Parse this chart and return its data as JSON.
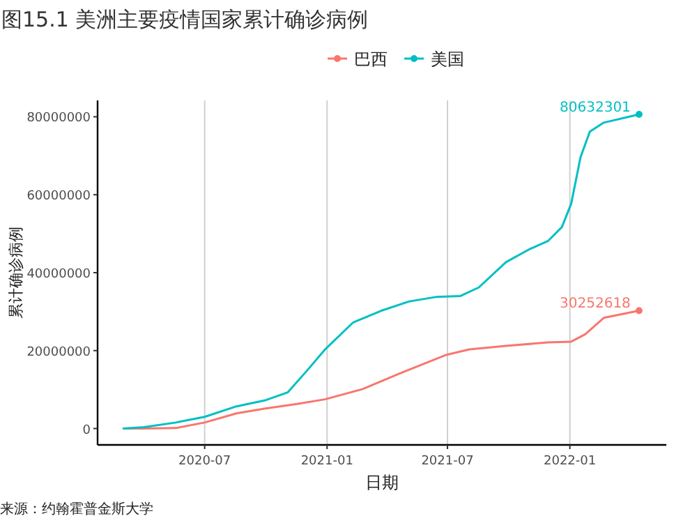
{
  "chart_data": {
    "type": "line",
    "title": "图15.1 美洲主要疫情国家累计确诊病例",
    "xlabel": "日期",
    "ylabel": "累计确诊病例",
    "annotations": [
      "来源：约翰霍普金斯大学"
    ],
    "xlim": [
      "2020-01-22",
      "2022-05-26"
    ],
    "xticks": [
      {
        "value": "2020-07-01",
        "label": "2020-07"
      },
      {
        "value": "2021-01-01",
        "label": "2021-01"
      },
      {
        "value": "2021-07-01",
        "label": "2021-07"
      },
      {
        "value": "2022-01-01",
        "label": "2022-01"
      }
    ],
    "ylim": [
      -4200000,
      84200000
    ],
    "yticks": [
      0,
      20000000,
      40000000,
      60000000,
      80000000
    ],
    "grid": "x",
    "legend": "top",
    "series": [
      {
        "name": "巴西",
        "color": "#f8766d",
        "x": [
          "2020-03-01",
          "2020-04-01",
          "2020-05-19",
          "2020-07-01",
          "2020-08-18",
          "2020-09-29",
          "2020-11-17",
          "2020-12-29",
          "2021-02-23",
          "2021-04-20",
          "2021-06-29",
          "2021-08-03",
          "2021-09-27",
          "2021-11-29",
          "2022-01-03",
          "2022-01-24",
          "2022-02-21",
          "2022-04-15"
        ],
        "values": [
          0,
          0,
          120000,
          1550000,
          3900000,
          5100000,
          6300000,
          7500000,
          10100000,
          14100000,
          18900000,
          20300000,
          21200000,
          22100000,
          22300000,
          24200000,
          28400000,
          30252618
        ],
        "value_labels": [
          null,
          null,
          null,
          null,
          null,
          null,
          null,
          null,
          null,
          null,
          null,
          null,
          null,
          null,
          null,
          null,
          null,
          "30252618"
        ]
      },
      {
        "name": "美国",
        "color": "#00bfc4",
        "x": [
          "2020-03-01",
          "2020-04-01",
          "2020-05-19",
          "2020-07-01",
          "2020-08-18",
          "2020-09-29",
          "2020-11-03",
          "2020-12-01",
          "2020-12-29",
          "2021-02-09",
          "2021-03-23",
          "2021-05-04",
          "2021-06-15",
          "2021-07-20",
          "2021-08-17",
          "2021-09-27",
          "2021-11-01",
          "2021-11-29",
          "2021-12-20",
          "2022-01-03",
          "2022-01-17",
          "2022-01-31",
          "2022-02-21",
          "2022-04-15"
        ],
        "values": [
          0,
          360000,
          1550000,
          3000000,
          5700000,
          7200000,
          9300000,
          14700000,
          20300000,
          27200000,
          30200000,
          32600000,
          33800000,
          34000000,
          36200000,
          42700000,
          46000000,
          48100000,
          51700000,
          57700000,
          69600000,
          76200000,
          78500000,
          80632301
        ],
        "value_labels": [
          null,
          null,
          null,
          null,
          null,
          null,
          null,
          null,
          null,
          null,
          null,
          null,
          null,
          null,
          null,
          null,
          null,
          null,
          null,
          null,
          null,
          null,
          null,
          "80632301"
        ]
      }
    ]
  }
}
